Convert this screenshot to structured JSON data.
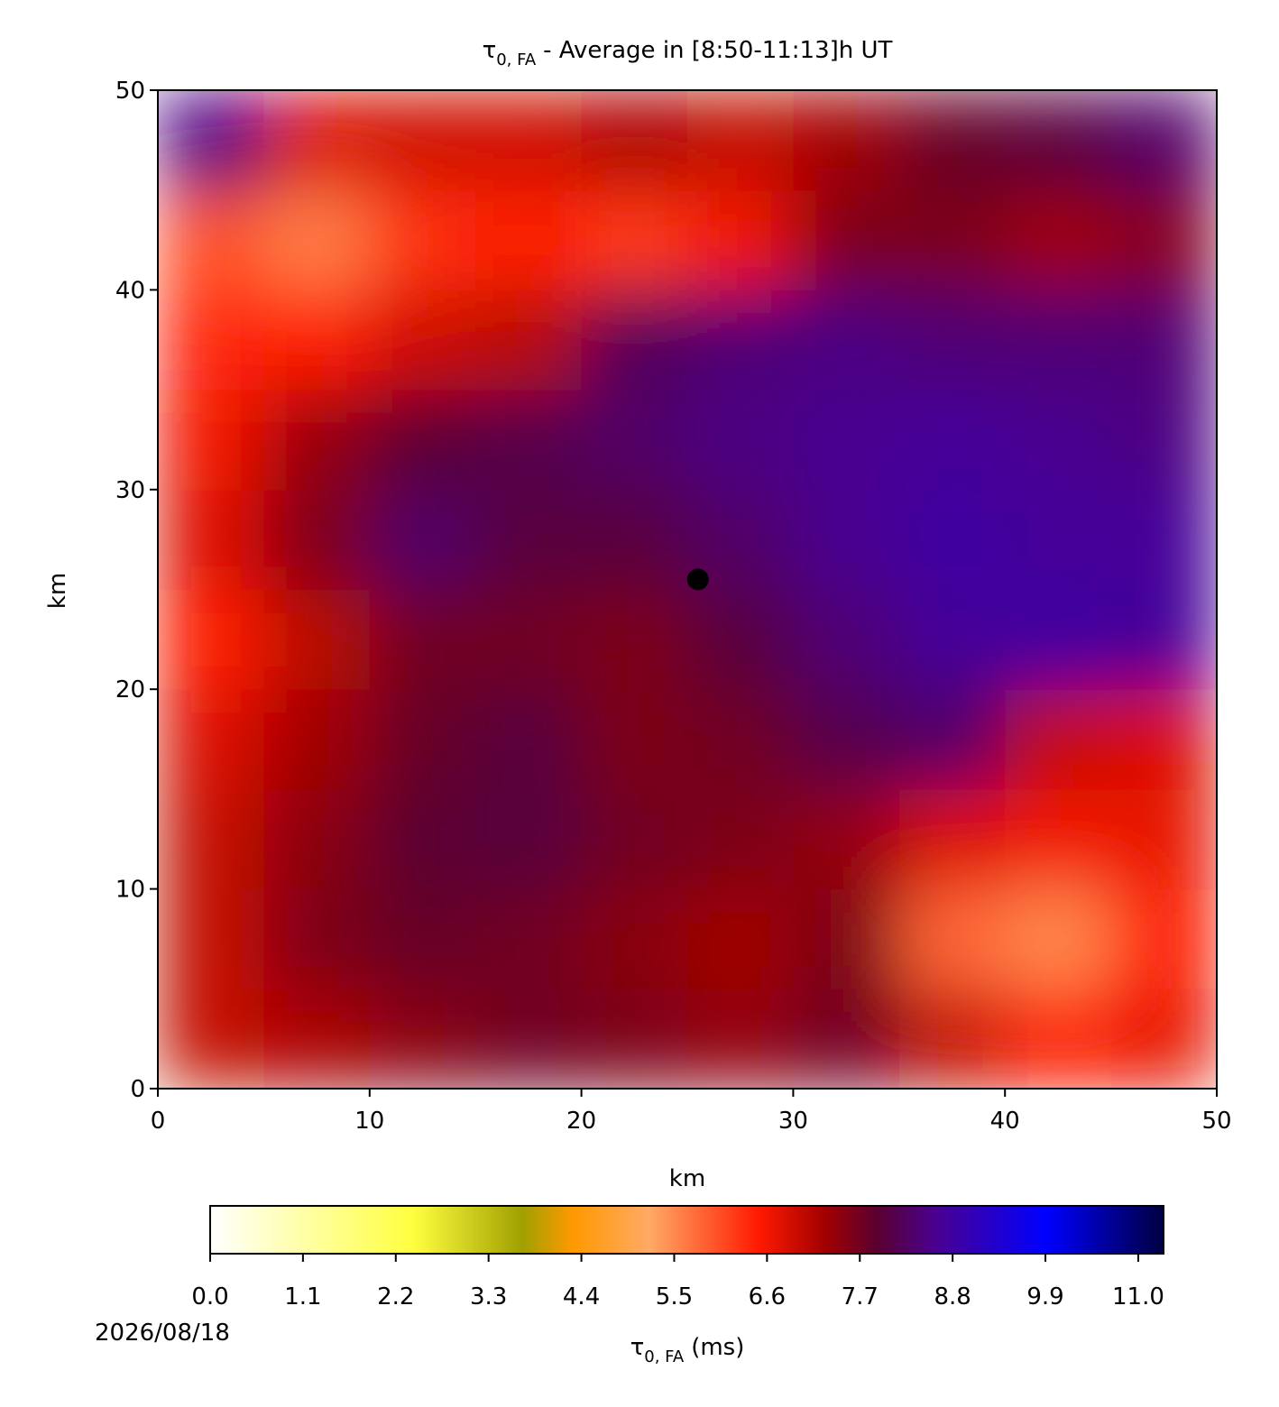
{
  "chart_data": {
    "type": "heatmap",
    "title": {
      "symbol": "τ",
      "subscript": "0, FA",
      "text": "- Average in [8:50-11:13]h UT"
    },
    "xlabel": "km",
    "ylabel": "km",
    "xlim": [
      0,
      50
    ],
    "ylim": [
      0,
      50
    ],
    "xticks": [
      0,
      10,
      20,
      30,
      40,
      50
    ],
    "yticks": [
      0,
      10,
      20,
      30,
      40,
      50
    ],
    "z": [
      [
        7.0,
        7.2,
        7.5,
        7.7,
        7.6,
        7.4,
        7.7,
        7.0,
        6.5,
        6.7
      ],
      [
        7.0,
        7.6,
        7.8,
        7.7,
        7.5,
        7.3,
        7.6,
        5.8,
        5.5,
        6.5
      ],
      [
        7.0,
        7.5,
        7.9,
        8.0,
        7.7,
        7.6,
        7.4,
        6.8,
        6.6,
        6.7
      ],
      [
        6.8,
        7.3,
        7.8,
        8.0,
        7.6,
        7.7,
        8.1,
        8.3,
        7.0,
        6.8
      ],
      [
        6.5,
        7.1,
        7.7,
        7.7,
        7.6,
        8.0,
        8.4,
        8.7,
        8.8,
        8.7
      ],
      [
        6.8,
        7.6,
        8.3,
        8.0,
        8.0,
        8.3,
        8.6,
        8.8,
        8.7,
        8.7
      ],
      [
        6.6,
        7.4,
        7.9,
        8.1,
        8.3,
        8.5,
        8.6,
        8.7,
        8.6,
        8.5
      ],
      [
        6.4,
        6.5,
        6.9,
        7.1,
        8.2,
        8.4,
        8.5,
        8.4,
        8.4,
        8.4
      ],
      [
        6.0,
        5.6,
        6.3,
        6.5,
        6.2,
        6.6,
        7.6,
        7.6,
        7.3,
        7.5
      ],
      [
        8.5,
        6.8,
        6.9,
        6.9,
        7.2,
        7.0,
        7.3,
        7.8,
        8.0,
        8.3
      ]
    ],
    "point": {
      "x": 25.5,
      "y": 25.5,
      "color": "#000000"
    },
    "colorbar": {
      "label": {
        "symbol": "τ",
        "subscript": "0, FA",
        "text": "(ms)"
      },
      "lim": [
        0,
        11.3
      ],
      "ticks": [
        {
          "value": 0,
          "label": "0.0"
        },
        1.1,
        2.2,
        3.3,
        4.4,
        5.5,
        6.6,
        7.7,
        8.8,
        9.9,
        {
          "value": 11,
          "label": "11.0"
        }
      ],
      "colorscale": [
        {
          "value": 0,
          "color": "#ffffff"
        },
        {
          "value": 2.4,
          "color": "#ffff40"
        },
        {
          "value": 3.7,
          "color": "#a0a000"
        },
        {
          "value": 4.3,
          "color": "#ff9900"
        },
        {
          "value": 5.2,
          "color": "#ffaa66"
        },
        {
          "value": 6.5,
          "color": "#ff1a00"
        },
        {
          "value": 7.3,
          "color": "#a00000"
        },
        {
          "value": 7.9,
          "color": "#5a0030"
        },
        {
          "value": 8.6,
          "color": "#4a0090"
        },
        {
          "value": 9.9,
          "color": "#0000ff"
        },
        {
          "value": 11.3,
          "color": "#000040"
        }
      ]
    },
    "date": "2026/08/18"
  }
}
